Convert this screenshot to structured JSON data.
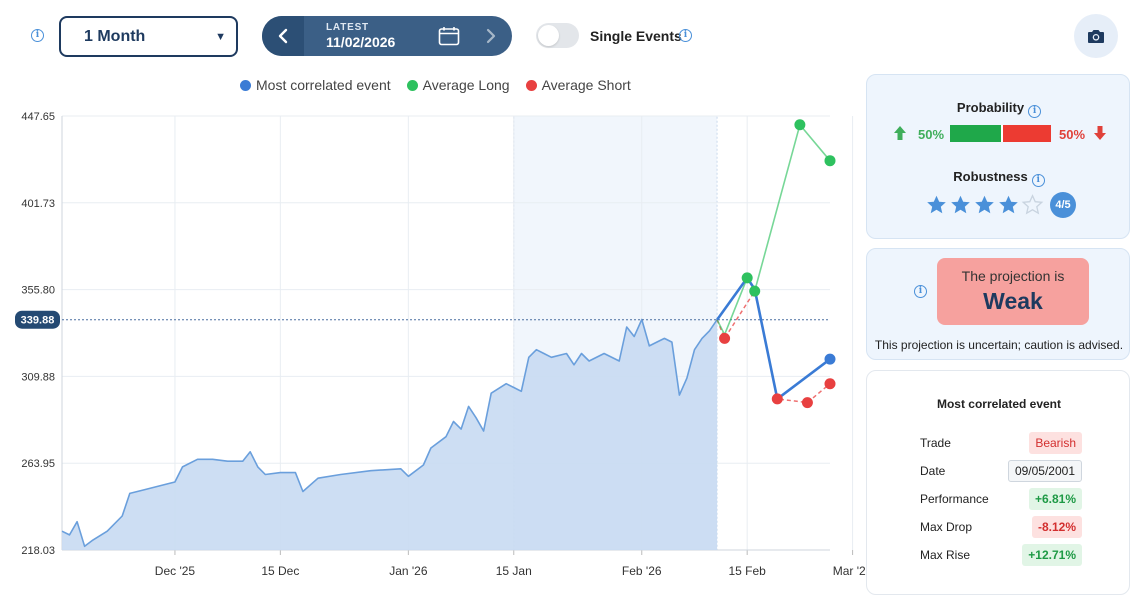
{
  "toolbar": {
    "period": "1 Month",
    "latest_label": "LATEST",
    "latest_date": "11/02/2026",
    "single_events_label": "Single Events",
    "single_events_on": false
  },
  "legend": [
    {
      "label": "Most correlated event",
      "color": "#4a86e8"
    },
    {
      "label": "Average Long",
      "color": "#2ec15f"
    },
    {
      "label": "Average Short",
      "color": "#e84040"
    }
  ],
  "probability": {
    "title": "Probability",
    "long_pct": "50%",
    "short_pct": "50%",
    "long_fraction": 0.5,
    "robustness_title": "Robustness",
    "robustness_stars": 4,
    "robustness_max": 5,
    "robustness_badge": "4/5"
  },
  "projection": {
    "line1": "The projection is",
    "strength": "Weak",
    "note": "This projection is uncertain; caution is advised."
  },
  "correlated_event": {
    "title": "Most correlated event",
    "rows": [
      {
        "key": "Trade",
        "value": "Bearish",
        "style": "red"
      },
      {
        "key": "Date",
        "value": "09/05/2001",
        "style": "plain"
      },
      {
        "key": "Performance",
        "value": "+6.81%",
        "style": "green"
      },
      {
        "key": "Max Drop",
        "value": "-8.12%",
        "style": "redb"
      },
      {
        "key": "Max Rise",
        "value": "+12.71%",
        "style": "green"
      }
    ]
  },
  "chart_data": {
    "type": "area",
    "y_ticks": [
      "447.65",
      "401.73",
      "355.80",
      "309.88",
      "263.95",
      "218.03"
    ],
    "ylim": [
      218.03,
      447.65
    ],
    "x_ticks": [
      "Dec '25",
      "15 Dec",
      "Jan '26",
      "15 Jan",
      "Feb '26",
      "15 Feb",
      "Mar '26"
    ],
    "current_value": "339.88",
    "price_series": {
      "name": "Price",
      "points": [
        [
          "2025-11-16",
          228
        ],
        [
          "2025-11-17",
          226
        ],
        [
          "2025-11-18",
          233
        ],
        [
          "2025-11-19",
          220
        ],
        [
          "2025-11-20",
          223
        ],
        [
          "2025-11-22",
          228
        ],
        [
          "2025-11-24",
          236
        ],
        [
          "2025-11-25",
          248
        ],
        [
          "2025-11-27",
          250
        ],
        [
          "2025-11-30",
          253
        ],
        [
          "2025-12-01",
          254
        ],
        [
          "2025-12-02",
          262
        ],
        [
          "2025-12-04",
          266
        ],
        [
          "2025-12-06",
          266
        ],
        [
          "2025-12-08",
          265
        ],
        [
          "2025-12-10",
          265
        ],
        [
          "2025-12-11",
          270
        ],
        [
          "2025-12-12",
          262
        ],
        [
          "2025-12-13",
          258
        ],
        [
          "2025-12-15",
          259
        ],
        [
          "2025-12-17",
          259
        ],
        [
          "2025-12-18",
          249
        ],
        [
          "2025-12-20",
          256
        ],
        [
          "2025-12-23",
          258
        ],
        [
          "2025-12-27",
          260
        ],
        [
          "2025-12-31",
          261
        ],
        [
          "2026-01-01",
          257
        ],
        [
          "2026-01-03",
          263
        ],
        [
          "2026-01-04",
          272
        ],
        [
          "2026-01-06",
          278
        ],
        [
          "2026-01-07",
          286
        ],
        [
          "2026-01-08",
          282
        ],
        [
          "2026-01-09",
          294
        ],
        [
          "2026-01-10",
          288
        ],
        [
          "2026-01-11",
          281
        ],
        [
          "2026-01-12",
          301
        ],
        [
          "2026-01-14",
          306
        ],
        [
          "2026-01-15",
          304
        ],
        [
          "2026-01-16",
          302
        ],
        [
          "2026-01-17",
          320
        ],
        [
          "2026-01-18",
          324
        ],
        [
          "2026-01-19",
          322
        ],
        [
          "2026-01-20",
          320
        ],
        [
          "2026-01-22",
          322
        ],
        [
          "2026-01-23",
          316
        ],
        [
          "2026-01-24",
          322
        ],
        [
          "2026-01-25",
          318
        ],
        [
          "2026-01-27",
          322
        ],
        [
          "2026-01-29",
          318
        ],
        [
          "2026-01-30",
          336
        ],
        [
          "2026-01-31",
          331
        ],
        [
          "2026-02-01",
          340
        ],
        [
          "2026-02-02",
          326
        ],
        [
          "2026-02-03",
          328
        ],
        [
          "2026-02-04",
          330
        ],
        [
          "2026-02-05",
          328
        ],
        [
          "2026-02-06",
          300
        ],
        [
          "2026-02-07",
          309
        ],
        [
          "2026-02-08",
          324
        ],
        [
          "2026-02-09",
          330
        ],
        [
          "2026-02-10",
          334
        ],
        [
          "2026-02-11",
          339.88
        ]
      ]
    },
    "projection_series": [
      {
        "name": "Most correlated event",
        "color": "#3a7bd5",
        "points": [
          [
            "2026-02-11",
            339.88
          ],
          [
            "2026-02-15",
            362
          ],
          [
            "2026-02-16",
            356
          ],
          [
            "2026-02-19",
            298
          ],
          [
            "2026-02-26",
            319
          ]
        ]
      },
      {
        "name": "Average Long",
        "color": "#2ec15f",
        "points": [
          [
            "2026-02-11",
            339.88
          ],
          [
            "2026-02-12",
            332
          ],
          [
            "2026-02-15",
            362
          ],
          [
            "2026-02-16",
            355
          ],
          [
            "2026-02-22",
            443
          ],
          [
            "2026-02-26",
            424
          ]
        ]
      },
      {
        "name": "Average Short",
        "color": "#e84040",
        "points": [
          [
            "2026-02-11",
            339.88
          ],
          [
            "2026-02-12",
            330
          ],
          [
            "2026-02-16",
            355
          ],
          [
            "2026-02-19",
            298
          ],
          [
            "2026-02-23",
            296
          ],
          [
            "2026-02-26",
            306
          ]
        ]
      }
    ],
    "highlight_range": [
      "2026-01-15",
      "2026-02-11"
    ]
  }
}
